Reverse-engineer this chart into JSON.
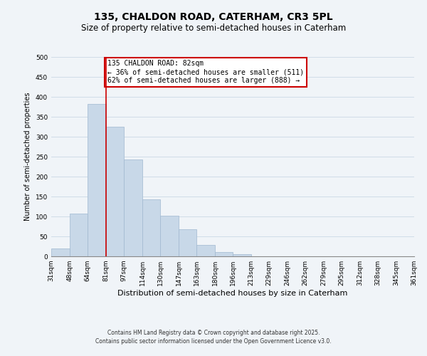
{
  "title": "135, CHALDON ROAD, CATERHAM, CR3 5PL",
  "subtitle": "Size of property relative to semi-detached houses in Caterham",
  "xlabel": "Distribution of semi-detached houses by size in Caterham",
  "ylabel": "Number of semi-detached properties",
  "bar_values": [
    20,
    107,
    383,
    325,
    243,
    143,
    102,
    68,
    29,
    10,
    5,
    0,
    0,
    0,
    0,
    0,
    0,
    0,
    0,
    0
  ],
  "bin_edges": [
    31,
    48,
    64,
    81,
    97,
    114,
    130,
    147,
    163,
    180,
    196,
    213,
    229,
    246,
    262,
    279,
    295,
    312,
    328,
    345,
    361
  ],
  "tick_labels": [
    "31sqm",
    "48sqm",
    "64sqm",
    "81sqm",
    "97sqm",
    "114sqm",
    "130sqm",
    "147sqm",
    "163sqm",
    "180sqm",
    "196sqm",
    "213sqm",
    "229sqm",
    "246sqm",
    "262sqm",
    "279sqm",
    "295sqm",
    "312sqm",
    "328sqm",
    "345sqm",
    "361sqm"
  ],
  "bar_color": "#c8d8e8",
  "bar_edge_color": "#a0b8d0",
  "vline_x": 81,
  "vline_color": "#cc0000",
  "ylim": [
    0,
    500
  ],
  "yticks": [
    0,
    50,
    100,
    150,
    200,
    250,
    300,
    350,
    400,
    450,
    500
  ],
  "annotation_title": "135 CHALDON ROAD: 82sqm",
  "annotation_line1": "← 36% of semi-detached houses are smaller (511)",
  "annotation_line2": "62% of semi-detached houses are larger (888) →",
  "annotation_box_color": "#ffffff",
  "annotation_box_edge": "#cc0000",
  "grid_color": "#d0dce8",
  "bg_color": "#f0f4f8",
  "footnote1": "Contains HM Land Registry data © Crown copyright and database right 2025.",
  "footnote2": "Contains public sector information licensed under the Open Government Licence v3.0.",
  "title_fontsize": 10,
  "subtitle_fontsize": 8.5,
  "xlabel_fontsize": 8,
  "ylabel_fontsize": 7,
  "tick_fontsize": 6.5,
  "annot_fontsize": 7,
  "footnote_fontsize": 5.5
}
